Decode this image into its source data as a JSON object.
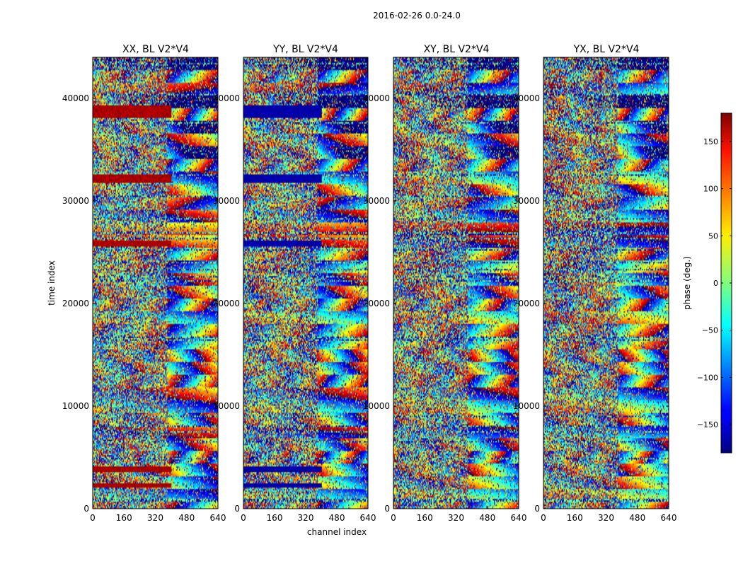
{
  "chart_data": {
    "type": "heatmap",
    "title": "2016-02-26 0.0-24.0",
    "xlabel": "channel index",
    "ylabel": "time index",
    "xlim": [
      0,
      640
    ],
    "ylim": [
      0,
      44000
    ],
    "x_ticks": [
      0,
      160,
      320,
      480,
      640
    ],
    "y_ticks": [
      0,
      10000,
      20000,
      30000,
      40000
    ],
    "y_tick_labels": [
      "0",
      "10000",
      "20000",
      "30000",
      "40000"
    ],
    "panels": [
      {
        "title": "XX, BL V2*V4",
        "offset_phase": 165
      },
      {
        "title": "YY, BL V2*V4",
        "offset_phase": -165
      },
      {
        "title": "XY, BL V2*V4",
        "offset_phase": null
      },
      {
        "title": "YX, BL V2*V4",
        "offset_phase": null
      }
    ],
    "flagged_time_bands": [
      [
        2200,
        2600
      ],
      [
        3600,
        4200
      ],
      [
        25600,
        26200
      ],
      [
        31800,
        32600
      ],
      [
        38200,
        39400
      ]
    ],
    "flagged_channel_range": [
      0,
      400
    ],
    "colorbar": {
      "label": "phase (deg.)",
      "vmin": -180,
      "vmax": 180,
      "ticks": [
        -150,
        -100,
        -50,
        0,
        50,
        100,
        150
      ],
      "tick_labels": [
        "−150",
        "−100",
        "−50",
        "0",
        "50",
        "100",
        "150"
      ],
      "colormap": "jet"
    }
  }
}
